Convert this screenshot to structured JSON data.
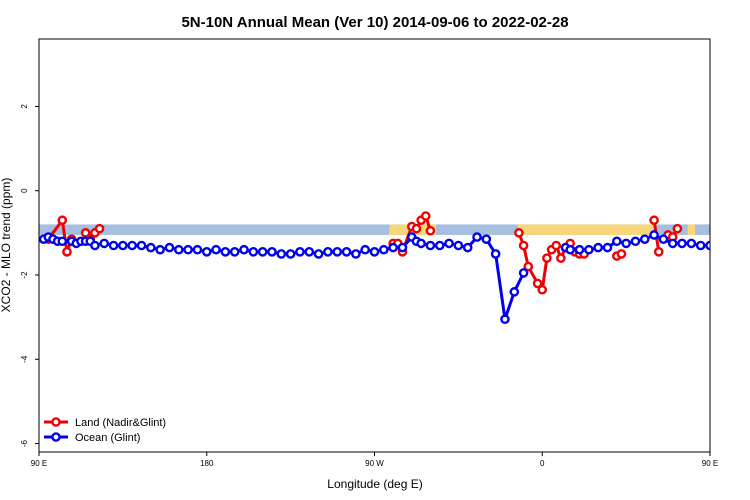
{
  "chart_data": {
    "type": "line",
    "title": "5N-10N Annual Mean (Ver 10)   2014-09-06 to 2022-02-28",
    "xlabel": "Longitude (deg E)",
    "ylabel": "XCO2 - MLO trend (ppm)",
    "xlim": [
      90,
      450
    ],
    "ylim": [
      -6.2,
      3.6
    ],
    "x_ticks": [
      {
        "value": 90,
        "label": "90 E"
      },
      {
        "value": 180,
        "label": "180"
      },
      {
        "value": 270,
        "label": "90 W"
      },
      {
        "value": 360,
        "label": "0"
      },
      {
        "value": 450,
        "label": "90 E"
      },
      {
        "value": 540,
        "label": "180"
      }
    ],
    "y_ticks": [
      {
        "value": 2,
        "label": "2"
      },
      {
        "value": 0,
        "label": "0"
      },
      {
        "value": -2,
        "label": "-2"
      },
      {
        "value": -4,
        "label": "-4"
      },
      {
        "value": -6,
        "label": "-6"
      }
    ],
    "band": {
      "y_from": -1.05,
      "y_to": -0.8,
      "ocean_color": "#a7bfdf",
      "land_color": "#f8d77c"
    },
    "land_spans": [
      [
        278,
        283
      ],
      [
        283,
        303
      ],
      [
        347,
        420
      ],
      [
        438,
        442
      ]
    ],
    "legend_placement": "bottom-left",
    "series": [
      {
        "name": "Land (Nadir&Glint)",
        "color": "#ee0000",
        "segments": [
          [
            [
              95,
              -1.15
            ],
            [
              102.5,
              -0.7
            ],
            [
              105,
              -1.45
            ],
            [
              107.5,
              -1.15
            ]
          ],
          [
            [
              115,
              -1.0
            ],
            [
              117.5,
              -1.15
            ],
            [
              120,
              -1.0
            ],
            [
              122.5,
              -0.9
            ]
          ],
          [
            [
              280,
              -1.25
            ],
            [
              282.5,
              -1.25
            ],
            [
              285,
              -1.45
            ],
            [
              290,
              -0.85
            ],
            [
              292.5,
              -0.9
            ],
            [
              295,
              -0.7
            ],
            [
              297.5,
              -0.6
            ],
            [
              300,
              -0.95
            ]
          ],
          [
            [
              347.5,
              -1.0
            ],
            [
              350,
              -1.3
            ],
            [
              352.5,
              -1.8
            ],
            [
              357.5,
              -2.2
            ],
            [
              360,
              -2.35
            ],
            [
              362.5,
              -1.6
            ],
            [
              365,
              -1.4
            ],
            [
              367.5,
              -1.3
            ],
            [
              370,
              -1.6
            ],
            [
              372.5,
              -1.35
            ],
            [
              375,
              -1.25
            ],
            [
              377.5,
              -1.45
            ],
            [
              380,
              -1.5
            ],
            [
              382.5,
              -1.5
            ]
          ],
          [
            [
              400,
              -1.55
            ],
            [
              402.5,
              -1.5
            ]
          ],
          [
            [
              420,
              -0.7
            ],
            [
              422.5,
              -1.45
            ]
          ],
          [
            [
              427.5,
              -1.05
            ],
            [
              430,
              -1.1
            ],
            [
              432.5,
              -0.9
            ]
          ]
        ]
      },
      {
        "name": "Ocean (Glint)",
        "color": "#0000ee",
        "segments": [
          [
            [
              92.5,
              -1.15
            ],
            [
              95,
              -1.1
            ],
            [
              97.5,
              -1.15
            ],
            [
              100,
              -1.2
            ],
            [
              102.5,
              -1.2
            ],
            [
              107.5,
              -1.2
            ],
            [
              110,
              -1.25
            ],
            [
              112.5,
              -1.2
            ],
            [
              115,
              -1.2
            ],
            [
              117.5,
              -1.2
            ],
            [
              120,
              -1.3
            ],
            [
              125,
              -1.25
            ],
            [
              130,
              -1.3
            ],
            [
              135,
              -1.3
            ],
            [
              140,
              -1.3
            ],
            [
              145,
              -1.3
            ],
            [
              150,
              -1.35
            ],
            [
              155,
              -1.4
            ],
            [
              160,
              -1.35
            ],
            [
              165,
              -1.4
            ],
            [
              170,
              -1.4
            ],
            [
              175,
              -1.4
            ],
            [
              180,
              -1.45
            ],
            [
              185,
              -1.4
            ],
            [
              190,
              -1.45
            ],
            [
              195,
              -1.45
            ],
            [
              200,
              -1.4
            ],
            [
              205,
              -1.45
            ],
            [
              210,
              -1.45
            ],
            [
              215,
              -1.45
            ],
            [
              220,
              -1.5
            ],
            [
              225,
              -1.5
            ],
            [
              230,
              -1.45
            ],
            [
              235,
              -1.45
            ],
            [
              240,
              -1.5
            ],
            [
              245,
              -1.45
            ],
            [
              250,
              -1.45
            ],
            [
              255,
              -1.45
            ],
            [
              260,
              -1.5
            ],
            [
              265,
              -1.4
            ],
            [
              270,
              -1.45
            ],
            [
              275,
              -1.4
            ],
            [
              280,
              -1.35
            ],
            [
              285,
              -1.35
            ],
            [
              290,
              -1.1
            ],
            [
              292.5,
              -1.2
            ],
            [
              295,
              -1.25
            ],
            [
              300,
              -1.3
            ],
            [
              305,
              -1.3
            ],
            [
              310,
              -1.25
            ],
            [
              315,
              -1.3
            ],
            [
              320,
              -1.35
            ],
            [
              325,
              -1.1
            ],
            [
              330,
              -1.15
            ],
            [
              335,
              -1.5
            ],
            [
              340,
              -3.05
            ],
            [
              345,
              -2.4
            ],
            [
              350,
              -1.95
            ]
          ],
          [
            [
              372.5,
              -1.35
            ],
            [
              375,
              -1.4
            ],
            [
              380,
              -1.4
            ],
            [
              385,
              -1.4
            ],
            [
              390,
              -1.35
            ],
            [
              395,
              -1.35
            ],
            [
              400,
              -1.2
            ],
            [
              405,
              -1.25
            ],
            [
              410,
              -1.2
            ],
            [
              415,
              -1.15
            ],
            [
              420,
              -1.05
            ],
            [
              425,
              -1.15
            ],
            [
              430,
              -1.25
            ],
            [
              435,
              -1.25
            ],
            [
              440,
              -1.25
            ],
            [
              445,
              -1.3
            ],
            [
              450,
              -1.3
            ],
            [
              455,
              -1.3
            ],
            [
              460,
              -1.3
            ],
            [
              465,
              -1.35
            ],
            [
              470,
              -1.35
            ],
            [
              475,
              -1.35
            ],
            [
              480,
              -1.4
            ],
            [
              485,
              -1.4
            ],
            [
              490,
              -1.4
            ],
            [
              495,
              -1.45
            ],
            [
              500,
              -1.45
            ]
          ]
        ]
      }
    ]
  }
}
